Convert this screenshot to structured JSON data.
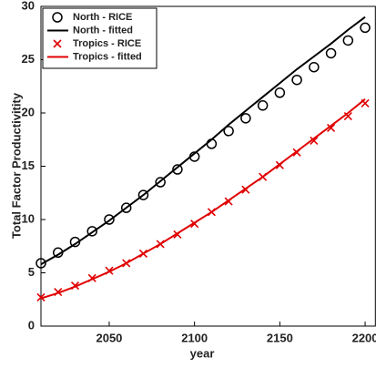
{
  "chart_data": {
    "type": "scatter-line",
    "x_label": "year",
    "y_label": "Total Factor Productivitity",
    "x": [
      2010,
      2020,
      2030,
      2040,
      2050,
      2060,
      2070,
      2080,
      2090,
      2100,
      2110,
      2120,
      2130,
      2140,
      2150,
      2160,
      2170,
      2180,
      2190,
      2200
    ],
    "series": [
      {
        "name": "North - RICE",
        "color": "#000000",
        "style": "marker",
        "marker": "o",
        "values": [
          5.9,
          6.9,
          7.9,
          8.9,
          10.0,
          11.1,
          12.3,
          13.5,
          14.7,
          15.9,
          17.1,
          18.3,
          19.5,
          20.7,
          21.9,
          23.1,
          24.3,
          25.6,
          26.8,
          28.0
        ]
      },
      {
        "name": "North - fitted",
        "color": "#000000",
        "style": "line",
        "values": [
          5.8,
          6.7,
          7.7,
          8.8,
          9.9,
          11.1,
          12.3,
          13.6,
          14.9,
          16.2,
          17.5,
          18.9,
          20.2,
          21.5,
          22.8,
          24.1,
          25.3,
          26.5,
          27.8,
          29.0
        ]
      },
      {
        "name": "Tropics - RICE",
        "color": "#e00000",
        "style": "marker",
        "marker": "x",
        "values": [
          2.7,
          3.2,
          3.8,
          4.5,
          5.2,
          5.9,
          6.8,
          7.7,
          8.6,
          9.6,
          10.7,
          11.7,
          12.8,
          14.0,
          15.1,
          16.3,
          17.4,
          18.6,
          19.7,
          20.9
        ]
      },
      {
        "name": "Tropics - fitted",
        "color": "#e00000",
        "style": "line",
        "values": [
          2.6,
          3.1,
          3.7,
          4.4,
          5.1,
          5.9,
          6.8,
          7.7,
          8.7,
          9.7,
          10.7,
          11.8,
          12.9,
          14.0,
          15.2,
          16.4,
          17.6,
          18.8,
          20.0,
          21.3
        ]
      }
    ],
    "xlim": [
      2010,
      2206
    ],
    "ylim": [
      0,
      30
    ],
    "xticks": [
      2050,
      2100,
      2150,
      2200
    ],
    "yticks": [
      0,
      5,
      10,
      15,
      20,
      25,
      30
    ],
    "legend": "upper-left",
    "grid": false
  }
}
